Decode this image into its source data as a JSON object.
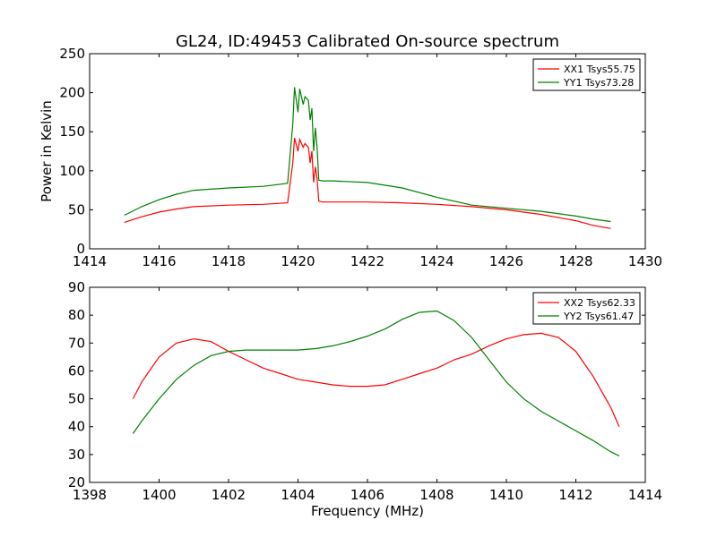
{
  "chart_data": [
    {
      "type": "line",
      "title": "GL24, ID:49453 Calibrated On-source spectrum",
      "xlabel": "",
      "ylabel": "Power in Kelvin",
      "xlim": [
        1414,
        1430
      ],
      "ylim": [
        0,
        250
      ],
      "xticks": [
        "1414",
        "1416",
        "1418",
        "1420",
        "1422",
        "1424",
        "1426",
        "1428",
        "1430"
      ],
      "yticks": [
        "0",
        "50",
        "100",
        "150",
        "200",
        "250"
      ],
      "grid": false,
      "legend_position": "top-right",
      "series": [
        {
          "name": "XX1 Tsys55.75",
          "color": "#ff0000",
          "x": [
            1415,
            1415.5,
            1416,
            1416.5,
            1417,
            1418,
            1419,
            1419.7,
            1419.85,
            1419.9,
            1420.0,
            1420.05,
            1420.15,
            1420.2,
            1420.3,
            1420.35,
            1420.4,
            1420.45,
            1420.5,
            1420.55,
            1420.6,
            1420.7,
            1421,
            1422,
            1423,
            1424,
            1425,
            1426,
            1427,
            1428,
            1428.5,
            1429
          ],
          "y": [
            34,
            41,
            47,
            51,
            54,
            56,
            57,
            59,
            110,
            142,
            125,
            140,
            130,
            135,
            130,
            110,
            125,
            85,
            105,
            90,
            61,
            60,
            60,
            60,
            59,
            57,
            54,
            50,
            44,
            36,
            30,
            26
          ]
        },
        {
          "name": "YY1 Tsys73.28",
          "color": "#008000",
          "x": [
            1415,
            1415.5,
            1416,
            1416.5,
            1417,
            1418,
            1419,
            1419.7,
            1419.85,
            1419.9,
            1420.0,
            1420.05,
            1420.15,
            1420.2,
            1420.3,
            1420.35,
            1420.4,
            1420.45,
            1420.5,
            1420.55,
            1420.6,
            1420.7,
            1421,
            1422,
            1423,
            1424,
            1425,
            1426,
            1427,
            1428,
            1428.5,
            1429
          ],
          "y": [
            43,
            54,
            63,
            70,
            75,
            78,
            80,
            84,
            160,
            207,
            175,
            205,
            185,
            195,
            190,
            165,
            180,
            125,
            155,
            130,
            88,
            87,
            87,
            85,
            78,
            66,
            56,
            52,
            48,
            42,
            38,
            35
          ]
        }
      ]
    },
    {
      "type": "line",
      "title": "",
      "xlabel": "Frequency (MHz)",
      "ylabel": "",
      "xlim": [
        1398,
        1414
      ],
      "ylim": [
        20,
        90
      ],
      "xticks": [
        "1398",
        "1400",
        "1402",
        "1404",
        "1406",
        "1408",
        "1410",
        "1412",
        "1414"
      ],
      "yticks": [
        "20",
        "30",
        "40",
        "50",
        "60",
        "70",
        "80",
        "90"
      ],
      "grid": false,
      "legend_position": "top-right",
      "series": [
        {
          "name": "XX2 Tsys62.33",
          "color": "#ff0000",
          "x": [
            1399.25,
            1399.5,
            1400,
            1400.5,
            1401,
            1401.5,
            1402,
            1402.5,
            1403,
            1403.5,
            1404,
            1404.5,
            1405,
            1405.5,
            1406,
            1406.5,
            1407,
            1407.5,
            1408,
            1408.5,
            1409,
            1409.5,
            1410,
            1410.5,
            1411,
            1411.5,
            1412,
            1412.5,
            1413,
            1413.25
          ],
          "y": [
            50,
            56,
            65,
            70,
            71.5,
            70.5,
            67,
            64,
            61,
            59,
            57,
            56,
            55,
            54.5,
            54.5,
            55,
            57,
            59,
            61,
            64,
            66,
            69,
            71.5,
            73,
            73.5,
            72,
            67,
            58,
            47,
            40
          ]
        },
        {
          "name": "YY2 Tsys61.47",
          "color": "#008000",
          "x": [
            1399.25,
            1399.5,
            1400,
            1400.5,
            1401,
            1401.5,
            1402,
            1402.5,
            1403,
            1403.5,
            1404,
            1404.5,
            1405,
            1405.5,
            1406,
            1406.5,
            1407,
            1407.5,
            1408,
            1408.5,
            1409,
            1409.5,
            1410,
            1410.5,
            1411,
            1411.5,
            1412,
            1412.5,
            1413,
            1413.25
          ],
          "y": [
            37.5,
            42,
            50,
            57,
            62,
            65.5,
            67,
            67.5,
            67.5,
            67.5,
            67.5,
            68,
            69,
            70.5,
            72.5,
            75,
            78.5,
            81,
            81.5,
            78,
            72,
            64,
            56,
            50,
            45.5,
            42,
            38.5,
            35,
            31,
            29.5
          ]
        }
      ]
    }
  ]
}
